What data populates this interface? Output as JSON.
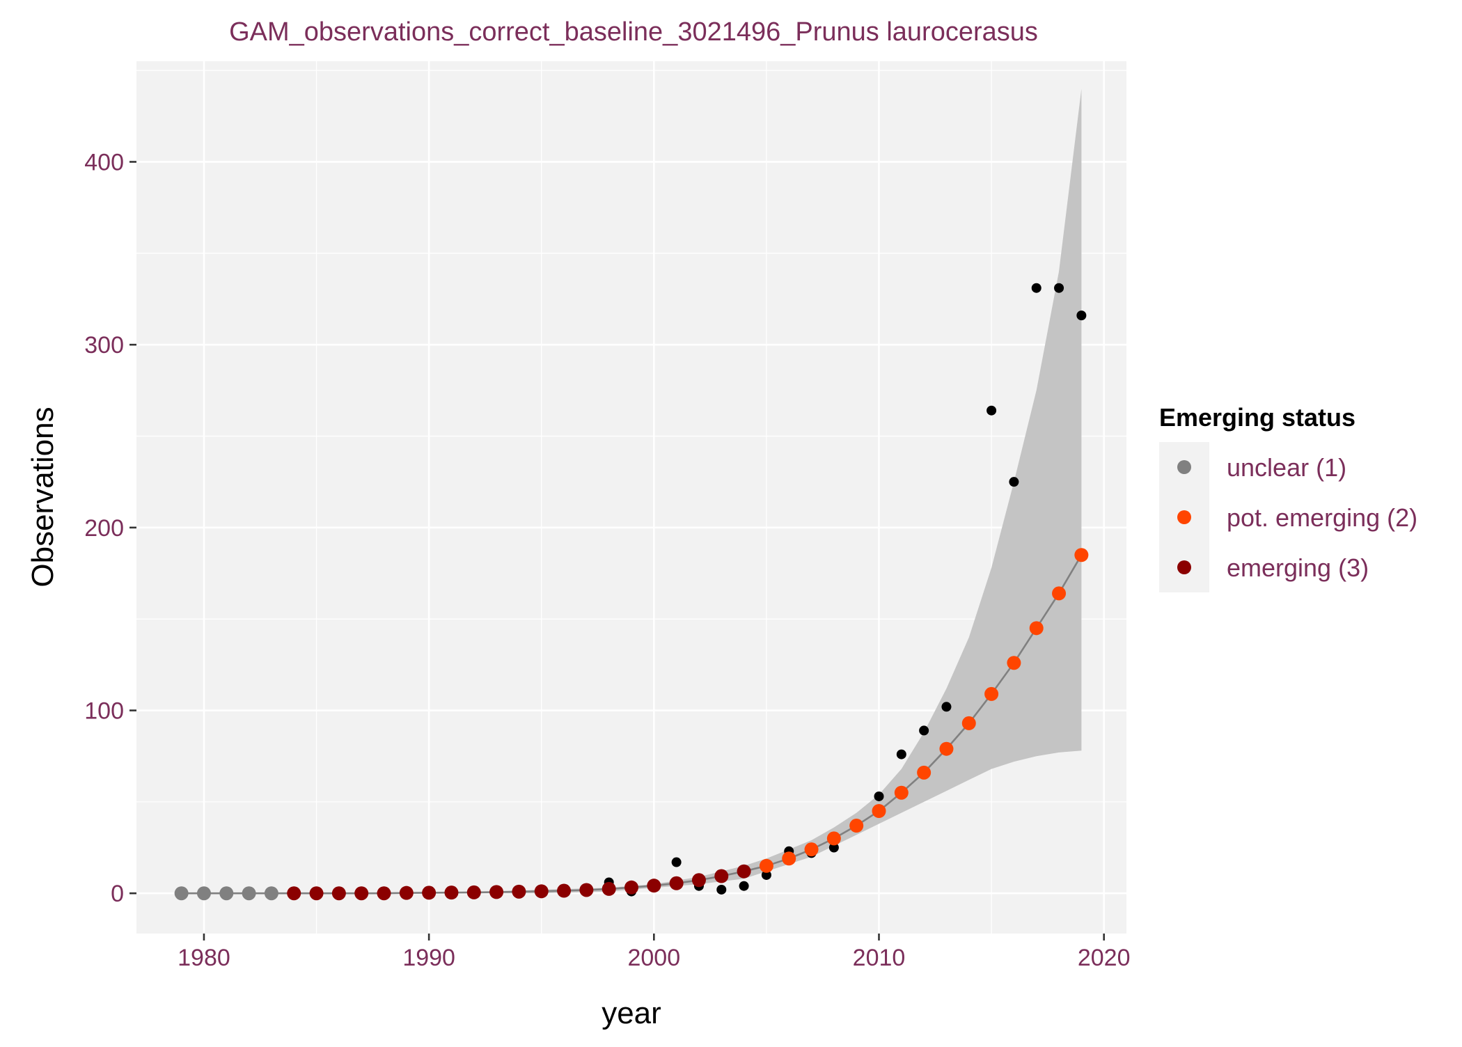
{
  "chart_data": {
    "type": "scatter",
    "title": "GAM_observations_correct_baseline_3021496_Prunus laurocerasus",
    "xlabel": "year",
    "ylabel": "Observations",
    "xlim": [
      1977,
      2021
    ],
    "ylim": [
      -22,
      455
    ],
    "x_ticks": [
      1980,
      1990,
      2000,
      2010,
      2020
    ],
    "y_ticks": [
      0,
      100,
      200,
      300,
      400
    ],
    "x_tick_labels": [
      "1980",
      "1990",
      "2000",
      "2010",
      "2020"
    ],
    "y_tick_labels": [
      "0",
      "100",
      "200",
      "300",
      "400"
    ],
    "grid": true,
    "legend": {
      "title": "Emerging status",
      "position": "right",
      "entries": [
        {
          "label": "unclear (1)",
          "color": "#808080"
        },
        {
          "label": "pot. emerging (2)",
          "color": "#FF4500"
        },
        {
          "label": "emerging (3)",
          "color": "#8B0000"
        }
      ]
    },
    "observations": {
      "color": "#000000",
      "points": [
        {
          "x": 1998,
          "y": 6
        },
        {
          "x": 1999,
          "y": 1
        },
        {
          "x": 2001,
          "y": 17
        },
        {
          "x": 2002,
          "y": 4
        },
        {
          "x": 2003,
          "y": 2
        },
        {
          "x": 2004,
          "y": 4
        },
        {
          "x": 2005,
          "y": 10
        },
        {
          "x": 2006,
          "y": 23
        },
        {
          "x": 2007,
          "y": 22
        },
        {
          "x": 2008,
          "y": 25
        },
        {
          "x": 2010,
          "y": 53
        },
        {
          "x": 2011,
          "y": 76
        },
        {
          "x": 2012,
          "y": 89
        },
        {
          "x": 2013,
          "y": 102
        },
        {
          "x": 2015,
          "y": 264
        },
        {
          "x": 2016,
          "y": 225
        },
        {
          "x": 2017,
          "y": 331
        },
        {
          "x": 2018,
          "y": 331
        },
        {
          "x": 2019,
          "y": 316
        }
      ]
    },
    "fit_line": {
      "color": "#808080",
      "x": [
        1979,
        1980,
        1981,
        1982,
        1983,
        1984,
        1985,
        1986,
        1987,
        1988,
        1989,
        1990,
        1991,
        1992,
        1993,
        1994,
        1995,
        1996,
        1997,
        1998,
        1999,
        2000,
        2001,
        2002,
        2003,
        2004,
        2005,
        2006,
        2007,
        2008,
        2009,
        2010,
        2011,
        2012,
        2013,
        2014,
        2015,
        2016,
        2017,
        2018,
        2019
      ],
      "y": [
        0,
        0,
        0,
        0,
        0,
        0,
        0,
        0,
        0,
        0,
        0.2,
        0.3,
        0.4,
        0.5,
        0.7,
        0.9,
        1.1,
        1.4,
        1.8,
        2.4,
        3.2,
        4.2,
        5.5,
        7.2,
        9.4,
        12,
        15,
        19,
        24,
        30,
        37,
        45,
        55,
        66,
        79,
        93,
        109,
        126,
        145,
        164,
        185
      ],
      "status": [
        1,
        1,
        1,
        1,
        1,
        3,
        3,
        3,
        3,
        3,
        3,
        3,
        3,
        3,
        3,
        3,
        3,
        3,
        3,
        3,
        3,
        3,
        3,
        3,
        3,
        3,
        2,
        2,
        2,
        2,
        2,
        2,
        2,
        2,
        2,
        2,
        2,
        2,
        2,
        2,
        2
      ]
    },
    "confidence_band": {
      "color": "#C4C4C4",
      "x": [
        1979,
        1983,
        1987,
        1991,
        1995,
        1998,
        2000,
        2002,
        2004,
        2005,
        2006,
        2007,
        2008,
        2009,
        2010,
        2011,
        2012,
        2013,
        2014,
        2015,
        2016,
        2017,
        2018,
        2019
      ],
      "lower": [
        0,
        0,
        0,
        0,
        0,
        1,
        3,
        5,
        8,
        12,
        16,
        20,
        26,
        32,
        38,
        44,
        50,
        56,
        62,
        68,
        72,
        75,
        77,
        78
      ],
      "upper": [
        0,
        0,
        0,
        0,
        2,
        3,
        5,
        9,
        15,
        19,
        24,
        29,
        36,
        44,
        54,
        68,
        88,
        112,
        140,
        178,
        225,
        275,
        340,
        440
      ]
    }
  }
}
